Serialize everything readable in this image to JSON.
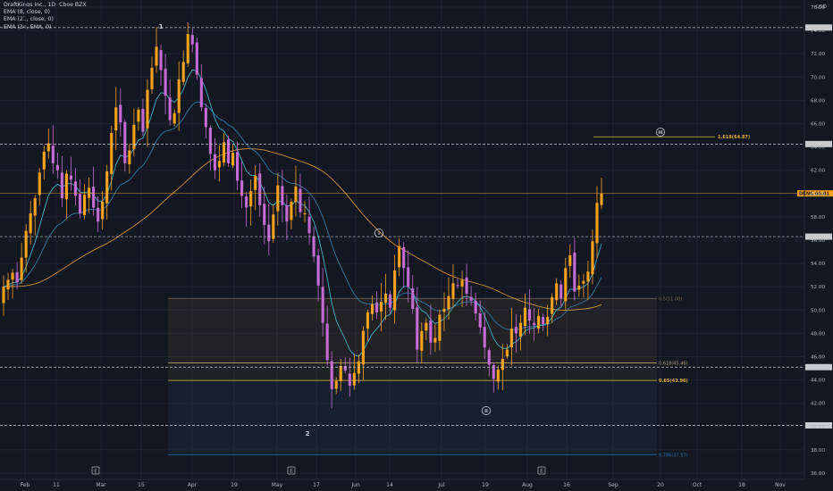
{
  "legend": {
    "title": "DraftKings Inc., 1D, Cboe BZX",
    "ema1": "EMA (8, close, 0)",
    "ema2": "EMA (21, close, 0)",
    "ema3": "EMA (34, EMA, 0)"
  },
  "currency": "USD",
  "chart_data": {
    "type": "candlestick",
    "symbol": "DKNG",
    "title": "DraftKings Inc., 1D, Cboe BZX",
    "y_axis": {
      "min": 36,
      "max": 76,
      "ticks": [
        "36.00",
        "38.00",
        "40.00",
        "42.00",
        "44.00",
        "46.00",
        "48.00",
        "50.00",
        "52.00",
        "54.00",
        "56.00",
        "58.00",
        "60.00",
        "62.00",
        "64.00",
        "66.00",
        "68.00",
        "70.00",
        "72.00",
        "74.00",
        "76.00"
      ]
    },
    "x_axis": {
      "ticks": [
        "Feb",
        "11",
        "Mar",
        "15",
        "Apr",
        "19",
        "May",
        "17",
        "Jun",
        "14",
        "Jul",
        "19",
        "Aug",
        "16",
        "Sep",
        "20",
        "Oct",
        "18",
        "Nov"
      ]
    },
    "last_price": {
      "label": "DKNG",
      "value": "60.01"
    },
    "horizontal_levels": [
      74.25,
      64.25,
      56.3,
      45.1,
      40.1
    ],
    "fib_levels": [
      {
        "label": "0.5(51.00)",
        "value": 51.0
      },
      {
        "label": "0.618(45.46)",
        "value": 45.46
      },
      {
        "label": "0.65(43.96)",
        "value": 43.96
      },
      {
        "label": "0.786(37.57)",
        "value": 37.57
      }
    ],
    "fib_extension": {
      "label": "1.618(64.87)",
      "value": 64.87
    },
    "wave_labels": [
      "1",
      "2",
      "i",
      "ii",
      "iii"
    ],
    "event_markers": [
      "E",
      "E",
      "E"
    ],
    "candles_close": [
      52.0,
      52.6,
      53.2,
      52.4,
      54.5,
      56.8,
      58.3,
      59.6,
      61.8,
      63.6,
      64.3,
      62.6,
      62.0,
      59.6,
      61.7,
      61.2,
      59.8,
      58.3,
      59.9,
      60.5,
      58.8,
      57.6,
      59.3,
      61.9,
      65.2,
      67.4,
      66.1,
      62.6,
      63.7,
      65.9,
      67.2,
      65.3,
      68.9,
      70.8,
      72.6,
      70.6,
      68.4,
      66.3,
      66.9,
      69.8,
      71.3,
      73.7,
      72.8,
      70.2,
      67.4,
      65.7,
      63.4,
      62.0,
      62.8,
      64.4,
      62.6,
      63.5,
      61.1,
      59.8,
      58.8,
      60.2,
      61.5,
      59.0,
      57.3,
      55.9,
      58.2,
      60.7,
      59.0,
      57.6,
      59.3,
      60.6,
      58.4,
      58.3,
      56.6,
      54.6,
      52.1,
      48.9,
      45.7,
      43.2,
      43.9,
      45.2,
      44.8,
      43.5,
      44.6,
      45.6,
      48.2,
      49.8,
      50.5,
      49.8,
      50.7,
      51.4,
      50.2,
      53.4,
      55.5,
      53.6,
      52.0,
      50.1,
      46.6,
      48.2,
      48.9,
      47.2,
      47.6,
      49.6,
      50.1,
      51.2,
      52.3,
      52.1,
      52.6,
      51.4,
      50.8,
      49.7,
      48.5,
      46.8,
      45.3,
      44.1,
      44.9,
      45.8,
      46.6,
      48.4,
      48.0,
      48.9,
      50.2,
      49.1,
      48.7,
      49.5,
      48.8,
      49.4,
      51.1,
      52.3,
      51.0,
      53.6,
      54.7,
      51.6,
      52.1,
      52.5,
      53.3,
      55.9,
      59.2,
      60.0
    ],
    "ema8_end": 53.7,
    "ema21_end": 51.5,
    "ema34_end": 50.7
  }
}
